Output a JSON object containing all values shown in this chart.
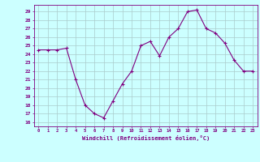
{
  "x": [
    0,
    1,
    2,
    3,
    4,
    5,
    6,
    7,
    8,
    9,
    10,
    11,
    12,
    13,
    14,
    15,
    16,
    17,
    18,
    19,
    20,
    21,
    22,
    23
  ],
  "y": [
    24.5,
    24.5,
    24.5,
    24.7,
    21.0,
    18.0,
    17.0,
    16.5,
    18.5,
    20.5,
    22.0,
    25.0,
    25.5,
    23.8,
    26.0,
    27.0,
    29.0,
    29.2,
    27.0,
    26.5,
    25.3,
    23.3,
    22.0,
    22.0
  ],
  "line_color": "#800080",
  "marker": "+",
  "marker_size": 3,
  "bg_color": "#ccffff",
  "grid_color": "#aacccc",
  "xlabel": "Windchill (Refroidissement éolien,°C)",
  "ylabel_ticks": [
    16,
    17,
    18,
    19,
    20,
    21,
    22,
    23,
    24,
    25,
    26,
    27,
    28,
    29
  ],
  "ylim": [
    15.5,
    29.8
  ],
  "xlim": [
    -0.5,
    23.5
  ],
  "tick_color": "#800080",
  "label_color": "#800080"
}
